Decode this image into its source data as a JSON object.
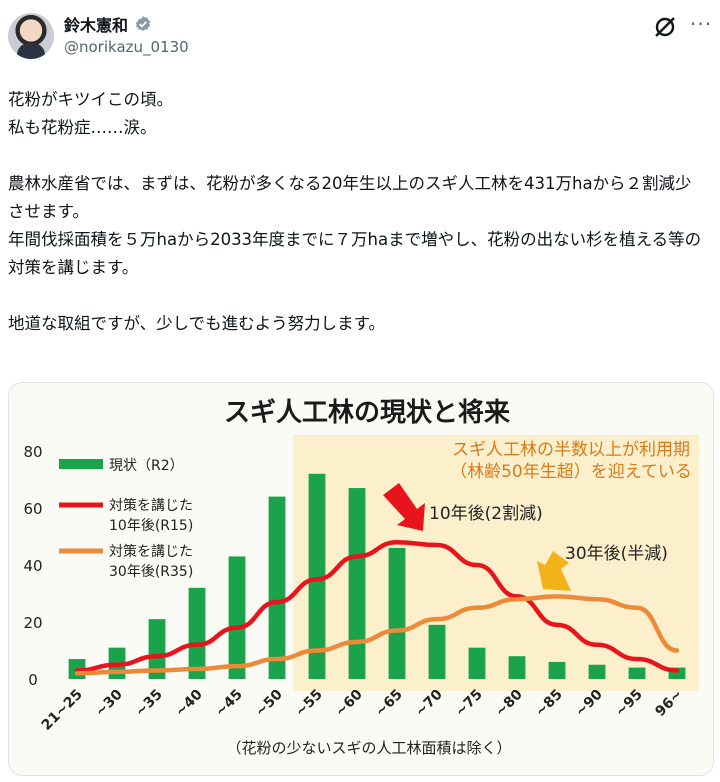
{
  "author": {
    "name": "鈴木憲和",
    "handle": "@norikazu_0130"
  },
  "icons": {
    "verified": "verified-badge-icon",
    "grok": "grok-icon",
    "more": "more-options-icon"
  },
  "tweet": {
    "para1": "花粉がキツイこの頃。\n私も花粉症……涙。",
    "para2": "農林水産省では、まずは、花粉が多くなる20年生以上のスギ人工林を431万haから２割減少させます。\n年間伐採面積を５万haから2033年度までに７万haまで増やし、花粉の出ない杉を植える等の対策を講じます。",
    "para3": "地道な取組ですが、少しでも進むよう努力します。"
  },
  "colors": {
    "bar": "#1aa34a",
    "line_r15": "#e8141c",
    "line_r35": "#ec8a3a",
    "highlight": "#fbefcc",
    "arrow_red": "#e8141c",
    "arrow_yellow": "#f2b21a",
    "note": "#d97a1a"
  },
  "chart_data": {
    "type": "bar",
    "title": "スギ人工林の現状と将来",
    "categories": [
      "21~25",
      "~30",
      "~35",
      "~40",
      "~45",
      "~50",
      "~55",
      "~60",
      "~65",
      "~70",
      "~75",
      "~80",
      "~85",
      "~90",
      "~95",
      "96~"
    ],
    "ylim": [
      0,
      80
    ],
    "yticks": [
      "0",
      "20",
      "40",
      "60",
      "80"
    ],
    "highlight_from_index": 6,
    "highlight_note": "スギ人工林の半数以上が利用期\n（林齢50年生超）を迎えている",
    "footnote": "（花粉の少ないスギの人工林面積は除く）",
    "legend": [
      {
        "key": "bar",
        "label": "現状（R2）"
      },
      {
        "key": "r15",
        "label": "対策を講じた\n10年後(R15)"
      },
      {
        "key": "r35",
        "label": "対策を講じた\n30年後(R35)"
      }
    ],
    "series": [
      {
        "name": "現状（R2）",
        "kind": "bar",
        "values": [
          7,
          11,
          21,
          32,
          43,
          64,
          72,
          67,
          46,
          19,
          11,
          8,
          6,
          5,
          4,
          4
        ]
      },
      {
        "name": "対策を講じた 10年後(R15)",
        "kind": "line",
        "values": [
          3,
          5,
          8,
          12,
          18,
          27,
          35,
          43,
          48,
          47,
          40,
          29,
          19,
          12,
          7,
          3
        ]
      },
      {
        "name": "対策を講じた 30年後(R35)",
        "kind": "line",
        "values": [
          2,
          2.5,
          3,
          3.5,
          4.5,
          7,
          10,
          13,
          17,
          21,
          25,
          28,
          29,
          28,
          25,
          10
        ]
      }
    ],
    "annotations": [
      {
        "text": "10年後(2割減)",
        "arrow": "arrow_red",
        "at_index": 9
      },
      {
        "text": "30年後(半減)",
        "arrow": "arrow_yellow",
        "at_index": 12
      }
    ]
  }
}
